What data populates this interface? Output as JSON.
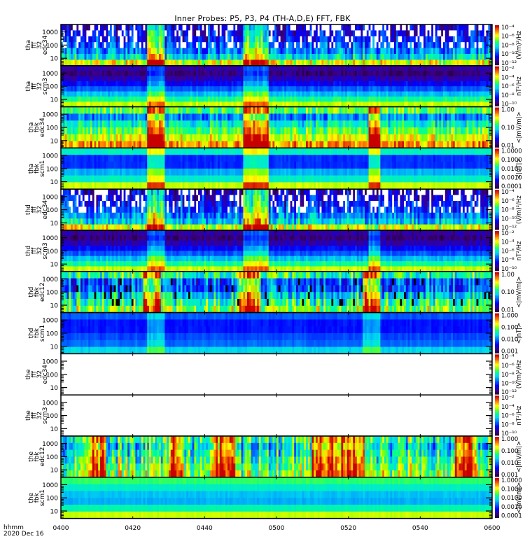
{
  "chart_data": {
    "type": "heatmap",
    "title": "Inner Probes: P5, P3, P4 (TH-A,D,E) FFT, FBK",
    "x_label": "hhmm",
    "date": "2020 Dec 16",
    "x_ticks": [
      "0400",
      "0420",
      "0440",
      "0500",
      "0520",
      "0540",
      "0600"
    ],
    "x_range": [
      "0400",
      "0600"
    ],
    "y_ticks": [
      "1000",
      "100",
      "10"
    ],
    "y_scale": "log",
    "panels": [
      {
        "label": [
          "tha",
          "fff",
          "32",
          "edc34"
        ],
        "cbar_label": "(V/m)²/Hz",
        "cbar_ticks": [
          "10⁻⁴",
          "10⁻⁶",
          "10⁻⁸",
          "10⁻¹⁰",
          "10⁻¹²"
        ],
        "style": "edc_fff",
        "events": [
          [
            0.2,
            0.24
          ],
          [
            0.42,
            0.48
          ]
        ],
        "data": "present"
      },
      {
        "label": [
          "tha",
          "fff",
          "32",
          "scm3"
        ],
        "cbar_label": "nT²/Hz",
        "cbar_ticks": [
          "10⁻²",
          "10⁻⁴",
          "10⁻⁶",
          "10⁻⁸",
          "10⁻¹⁰"
        ],
        "style": "scm_fff",
        "events": [
          [
            0.2,
            0.24
          ],
          [
            0.42,
            0.48
          ]
        ],
        "data": "present"
      },
      {
        "label": [
          "tha",
          "fbk",
          "edc34"
        ],
        "cbar_label": "<|mV/m|>",
        "cbar_ticks": [
          "1.00",
          "0.10",
          "0.01"
        ],
        "style": "edc_fbk",
        "events": [
          [
            0.2,
            0.24
          ],
          [
            0.42,
            0.48
          ],
          [
            0.71,
            0.74
          ]
        ],
        "data": "present"
      },
      {
        "label": [
          "tha",
          "fbk",
          "scm1"
        ],
        "cbar_label": "<|nT|>",
        "cbar_ticks": [
          "1.0000",
          "0.1000",
          "0.0100",
          "0.0010",
          "0.0001"
        ],
        "style": "scm_fbk",
        "events": [
          [
            0.2,
            0.24
          ],
          [
            0.42,
            0.48
          ],
          [
            0.71,
            0.74
          ]
        ],
        "data": "present"
      },
      {
        "label": [
          "thd",
          "fff",
          "32",
          "edc34"
        ],
        "cbar_label": "(V/m)²/Hz",
        "cbar_ticks": [
          "10⁻⁴",
          "10⁻⁶",
          "10⁻⁸",
          "10⁻¹⁰",
          "10⁻¹²"
        ],
        "style": "edc_fff",
        "events": [
          [
            0.2,
            0.24
          ],
          [
            0.42,
            0.48
          ]
        ],
        "data": "present"
      },
      {
        "label": [
          "thd",
          "fff",
          "32",
          "scm3"
        ],
        "cbar_label": "nT²/Hz",
        "cbar_ticks": [
          "10⁻²",
          "10⁻⁴",
          "10⁻⁶",
          "10⁻⁸",
          "10⁻¹⁰"
        ],
        "style": "scm_fff",
        "events": [
          [
            0.2,
            0.24
          ],
          [
            0.42,
            0.48
          ],
          [
            0.71,
            0.74
          ]
        ],
        "data": "present"
      },
      {
        "label": [
          "thd",
          "fbk",
          "edc12"
        ],
        "cbar_label": "<|mV/m|>",
        "cbar_ticks": [
          "1.00",
          "0.10",
          "0.01"
        ],
        "style": "edc_fbk_d",
        "events": [
          [
            0.19,
            0.23
          ],
          [
            0.41,
            0.46
          ],
          [
            0.7,
            0.74
          ]
        ],
        "data": "present"
      },
      {
        "label": [
          "thd",
          "fbk",
          "scm1"
        ],
        "cbar_label": "<|nT|>",
        "cbar_ticks": [
          "1.000",
          "0.100",
          "0.010",
          "0.001"
        ],
        "style": "scm_fbk_d",
        "events": [
          [
            0.2,
            0.24
          ],
          [
            0.7,
            0.74
          ]
        ],
        "data": "present"
      },
      {
        "label": [
          "the",
          "fff",
          "32",
          "edc34"
        ],
        "cbar_label": "(V/m)²/Hz",
        "cbar_ticks": [
          "10⁻⁴",
          "10⁻⁶",
          "10⁻⁸",
          "10⁻¹⁰",
          "10⁻¹²"
        ],
        "style": "empty",
        "events": [],
        "data": "none"
      },
      {
        "label": [
          "the",
          "fff",
          "32",
          "scm3"
        ],
        "cbar_label": "nT²/Hz",
        "cbar_ticks": [
          "10⁻²",
          "10⁻⁴",
          "10⁻⁶",
          "10⁻⁸",
          "10⁻¹⁰"
        ],
        "style": "empty",
        "events": [],
        "data": "none"
      },
      {
        "label": [
          "the",
          "fbk",
          "edc12"
        ],
        "cbar_label": "<|mV/m|>",
        "cbar_ticks": [
          "1.000",
          "0.100",
          "0.010",
          "0.001"
        ],
        "style": "edc_fbk_e",
        "events": [
          [
            0.06,
            0.1
          ],
          [
            0.25,
            0.28
          ],
          [
            0.35,
            0.4
          ],
          [
            0.58,
            0.7
          ],
          [
            0.91,
            0.96
          ]
        ],
        "data": "present"
      },
      {
        "label": [
          "the",
          "fbk",
          "scm1"
        ],
        "cbar_label": "<|mV/m|>",
        "cbar_ticks": [
          "1.0000",
          "0.1000",
          "0.0100",
          "0.0010",
          "0.0001"
        ],
        "style": "scm_fbk_e",
        "events": [],
        "data": "present"
      }
    ]
  }
}
